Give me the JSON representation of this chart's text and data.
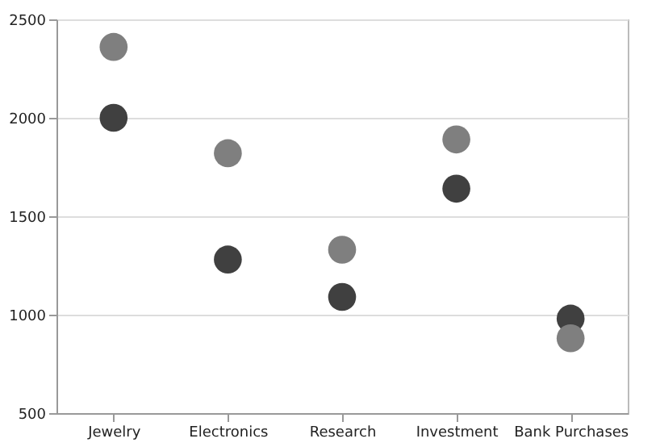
{
  "chart_data": {
    "type": "scatter",
    "categories": [
      "Jewelry",
      "Electronics",
      "Research",
      "Investment",
      "Bank Purchases"
    ],
    "series": [
      {
        "color": "#404040",
        "values": [
          2000,
          1280,
          1090,
          1640,
          980
        ]
      },
      {
        "color": "#7f7f7f",
        "values": [
          2360,
          1820,
          1330,
          1890,
          880
        ]
      }
    ],
    "ylim": [
      500,
      2500
    ],
    "yticks": [
      500,
      1000,
      1500,
      2000,
      2500
    ],
    "grid": "y",
    "marker": "circle",
    "legend": false
  }
}
